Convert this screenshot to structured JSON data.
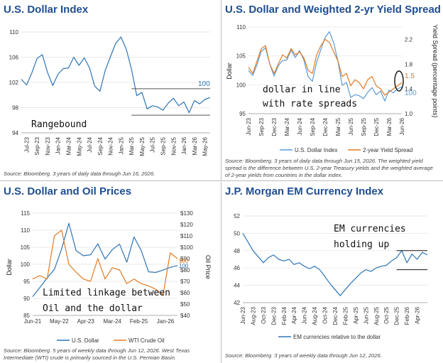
{
  "chart_data": [
    {
      "type": "line",
      "title": "U.S. Dollar Index",
      "ylim": [
        94,
        110
      ],
      "yticks": [
        94,
        98,
        102,
        106,
        110
      ],
      "xticks": [
        "Jul-23",
        "Sep-23",
        "Nov-23",
        "Jan-24",
        "Mar-24",
        "May-24",
        "Jul-24",
        "Sep-24",
        "Nov-24",
        "Jan-25",
        "Mar-25",
        "May-25",
        "Jul-25",
        "Sep-25",
        "Nov-25",
        "Jan-26",
        "Mar-26",
        "May-26"
      ],
      "series": [
        {
          "color": "#2e75b6",
          "x": [
            "Jun-23",
            "Jul-23",
            "Aug-23",
            "Sep-23",
            "Oct-23",
            "Nov-23",
            "Dec-23",
            "Jan-24",
            "Feb-24",
            "Mar-24",
            "Apr-24",
            "May-24",
            "Jun-24",
            "Jul-24",
            "Aug-24",
            "Sep-24",
            "Oct-24",
            "Nov-24",
            "Dec-24",
            "Jan-25",
            "Feb-25",
            "Mar-25",
            "Apr-25",
            "May-25",
            "Jun-25",
            "Jul-25",
            "Aug-25",
            "Sep-25",
            "Oct-25",
            "Nov-25",
            "Dec-25",
            "Jan-26",
            "Feb-26",
            "Mar-26",
            "Apr-26",
            "May-26",
            "Jun-26"
          ],
          "values": [
            102.5,
            101.6,
            103.5,
            105.8,
            106.4,
            103.6,
            101.5,
            103.3,
            104.2,
            104.3,
            106.0,
            104.7,
            105.9,
            104.3,
            101.4,
            100.6,
            103.9,
            106.1,
            108.2,
            109.2,
            107.3,
            104.1,
            99.9,
            100.4,
            97.8,
            98.3,
            98.1,
            97.6,
            98.7,
            99.5,
            98.3,
            98.9,
            97.2,
            99.1,
            98.6,
            99.3,
            99.6
          ]
        }
      ],
      "annotations": {
        "label": "Rangebound",
        "last_value_label": "100",
        "range_lines": [
          101,
          96.8
        ]
      },
      "source": "Source: Bloomberg. 3 years of daily data through Jun 16, 2026."
    },
    {
      "type": "line",
      "title": "U.S. Dollar and Weighted 2-yr Yield Spread",
      "ylabel": "Dollar",
      "y2label": "Yield Spread (percentage points)",
      "ylim": [
        95,
        110
      ],
      "yticks": [
        95,
        100,
        105,
        110
      ],
      "y2lim": [
        1.0,
        2.4
      ],
      "y2ticks": [
        1.0,
        1.4,
        1.8,
        2.2
      ],
      "xticks": [
        "Jun-23",
        "Sep-23",
        "Dec-23",
        "Mar-24",
        "Jun-24",
        "Sep-24",
        "Dec-24",
        "Mar-25",
        "Jun-25",
        "Sep-25",
        "Dec-25",
        "Mar-26",
        "Jun-26"
      ],
      "legend": [
        "U.S. Dollar Index",
        "2-year Yield Spread"
      ],
      "series": [
        {
          "name": "U.S. Dollar Index",
          "color": "#5b9bd5",
          "axis": "left",
          "x": [
            "Jun-23",
            "Jul-23",
            "Aug-23",
            "Sep-23",
            "Oct-23",
            "Nov-23",
            "Dec-23",
            "Jan-24",
            "Feb-24",
            "Mar-24",
            "Apr-24",
            "May-24",
            "Jun-24",
            "Jul-24",
            "Aug-24",
            "Sep-24",
            "Oct-24",
            "Nov-24",
            "Dec-24",
            "Jan-25",
            "Feb-25",
            "Mar-25",
            "Apr-25",
            "May-25",
            "Jun-25",
            "Jul-25",
            "Aug-25",
            "Sep-25",
            "Oct-25",
            "Nov-25",
            "Dec-25",
            "Jan-26",
            "Feb-26",
            "Mar-26",
            "Apr-26",
            "May-26",
            "Jun-26"
          ],
          "values": [
            102.5,
            101.6,
            103.5,
            105.8,
            106.4,
            103.6,
            101.5,
            103.3,
            104.2,
            104.3,
            106.0,
            104.7,
            105.9,
            104.3,
            101.4,
            100.6,
            103.9,
            106.1,
            108.2,
            109.2,
            107.3,
            104.1,
            99.9,
            100.4,
            97.8,
            98.3,
            98.1,
            97.6,
            98.7,
            99.5,
            98.3,
            98.9,
            97.2,
            99.1,
            98.6,
            99.3,
            99.6
          ]
        },
        {
          "name": "2-year Yield Spread",
          "color": "#e07b24",
          "axis": "right",
          "x": [
            "Jun-23",
            "Jul-23",
            "Aug-23",
            "Sep-23",
            "Oct-23",
            "Nov-23",
            "Dec-23",
            "Jan-24",
            "Feb-24",
            "Mar-24",
            "Apr-24",
            "May-24",
            "Jun-24",
            "Jul-24",
            "Aug-24",
            "Sep-24",
            "Oct-24",
            "Nov-24",
            "Dec-24",
            "Jan-25",
            "Feb-25",
            "Mar-25",
            "Apr-25",
            "May-25",
            "Jun-25",
            "Jul-25",
            "Aug-25",
            "Sep-25",
            "Oct-25",
            "Nov-25",
            "Dec-25",
            "Jan-26",
            "Feb-26",
            "Mar-26",
            "Apr-26",
            "May-26",
            "Jun-26"
          ],
          "values": [
            1.75,
            1.65,
            1.85,
            2.05,
            2.1,
            1.8,
            1.65,
            1.8,
            1.95,
            1.9,
            2.05,
            1.95,
            2.0,
            1.9,
            1.7,
            1.65,
            1.95,
            2.1,
            2.2,
            2.15,
            2.0,
            1.85,
            1.6,
            1.65,
            1.45,
            1.55,
            1.5,
            1.4,
            1.55,
            1.6,
            1.45,
            1.4,
            1.3,
            1.35,
            1.4,
            1.45,
            1.5
          ]
        }
      ],
      "annotations": {
        "label_line1": "dollar in line",
        "label_line2": "with rate spreads",
        "last_value_dollar": "100",
        "last_value_spread": "1.5"
      },
      "source": "Source: Bloomberg. 3 years of daily data through Jun 15, 2026. The weighted yield spread is the difference between U.S. 2-year Treasury yields and the weighted average of 2-year yields from countries in the dollar index."
    },
    {
      "type": "line",
      "title": "U.S. Dollar and Oil Prices",
      "ylabel": "Dollar",
      "y2label": "Oil Price",
      "ylim": [
        85,
        115
      ],
      "yticks": [
        85,
        90,
        95,
        100,
        105,
        110,
        115
      ],
      "y2lim": [
        40,
        130
      ],
      "y2ticks": [
        "$40",
        "$50",
        "$60",
        "$70",
        "$80",
        "$90",
        "$100",
        "$110",
        "$120",
        "$130"
      ],
      "xticks": [
        "Jun-21",
        "May-22",
        "Apr-23",
        "Mar-24",
        "Feb-25",
        "Jan-26"
      ],
      "legend": [
        "U.S. Dollar",
        "WTI Crude Oil"
      ],
      "series": [
        {
          "name": "U.S. Dollar",
          "color": "#2e75b6",
          "axis": "left",
          "x": [
            "Jun-21",
            "Sep-21",
            "Dec-21",
            "Mar-22",
            "Jun-22",
            "Sep-22",
            "Dec-22",
            "Mar-23",
            "Jun-23",
            "Sep-23",
            "Dec-23",
            "Mar-24",
            "Jun-24",
            "Sep-24",
            "Dec-24",
            "Mar-25",
            "Jun-25",
            "Sep-25",
            "Dec-25",
            "Mar-26",
            "Jun-26"
          ],
          "values": [
            90.5,
            93.2,
            96.0,
            98.5,
            104.5,
            112.0,
            104.0,
            102.5,
            102.8,
            106.0,
            101.5,
            104.3,
            105.9,
            100.6,
            108.0,
            104.0,
            97.8,
            97.6,
            98.3,
            99.1,
            99.6
          ]
        },
        {
          "name": "WTI Crude Oil",
          "color": "#e07b24",
          "axis": "right",
          "x": [
            "Jun-21",
            "Sep-21",
            "Dec-21",
            "Mar-22",
            "Jun-22",
            "Sep-22",
            "Dec-22",
            "Mar-23",
            "Jun-23",
            "Sep-23",
            "Dec-23",
            "Mar-24",
            "Jun-24",
            "Sep-24",
            "Dec-24",
            "Mar-25",
            "Jun-25",
            "Sep-25",
            "Dec-25",
            "Mar-26",
            "Jun-26"
          ],
          "values": [
            72,
            75,
            72,
            110,
            115,
            85,
            78,
            72,
            70,
            90,
            72,
            82,
            80,
            68,
            72,
            68,
            66,
            63,
            58,
            95,
            90
          ]
        }
      ],
      "annotations": {
        "label_line1": "Limited linkage between",
        "label_line2": "Oil and the dollar",
        "last_value_oil": "$90",
        "last_value_dollar": "100"
      },
      "source": "Source: Bloomberg. 5 years of weekly data through Jun 12, 2026. West Texas Intermediate (WTI) crude is primarily sourced in the U.S. Permian Basin."
    },
    {
      "type": "line",
      "title": "J.P. Morgan EM Currency Index",
      "ylim": [
        42,
        52
      ],
      "yticks": [
        42,
        44,
        46,
        48,
        50,
        52
      ],
      "xticks": [
        "Jun-23",
        "Aug-23",
        "Oct-23",
        "Dec-23",
        "Feb-24",
        "Apr-24",
        "Jun-24",
        "Aug-24",
        "Oct-24",
        "Dec-24",
        "Feb-25",
        "Apr-25",
        "Jun-25",
        "Aug-25",
        "Oct-25",
        "Dec-25",
        "Feb-26",
        "Apr-26"
      ],
      "legend": [
        "EM currencies relative to the dollar"
      ],
      "series": [
        {
          "name": "EM currencies relative to the dollar",
          "color": "#2e75b6",
          "x": [
            "Jun-23",
            "Jul-23",
            "Aug-23",
            "Sep-23",
            "Oct-23",
            "Nov-23",
            "Dec-23",
            "Jan-24",
            "Feb-24",
            "Mar-24",
            "Apr-24",
            "May-24",
            "Jun-24",
            "Jul-24",
            "Aug-24",
            "Sep-24",
            "Oct-24",
            "Nov-24",
            "Dec-24",
            "Jan-25",
            "Feb-25",
            "Mar-25",
            "Apr-25",
            "May-25",
            "Jun-25",
            "Jul-25",
            "Aug-25",
            "Sep-25",
            "Oct-25",
            "Nov-25",
            "Dec-25",
            "Jan-26",
            "Feb-26",
            "Mar-26",
            "Apr-26",
            "May-26",
            "Jun-26"
          ],
          "values": [
            50.0,
            49.0,
            48.0,
            47.3,
            46.6,
            47.2,
            47.5,
            47.0,
            46.8,
            47.0,
            46.4,
            46.6,
            46.2,
            45.9,
            46.2,
            45.8,
            45.0,
            44.2,
            43.5,
            42.8,
            43.5,
            44.2,
            44.8,
            45.4,
            45.8,
            45.6,
            46.0,
            46.2,
            46.3,
            46.8,
            47.2,
            48.0,
            46.6,
            47.6,
            47.0,
            47.8,
            47.5
          ]
        }
      ],
      "annotations": {
        "label_line1": "EM currencies",
        "label_line2": "holding up",
        "range_lines": [
          48.0,
          45.8
        ]
      },
      "source": "Source: Bloomberg. 3 years of weekly data through Jun 12, 2026."
    }
  ]
}
